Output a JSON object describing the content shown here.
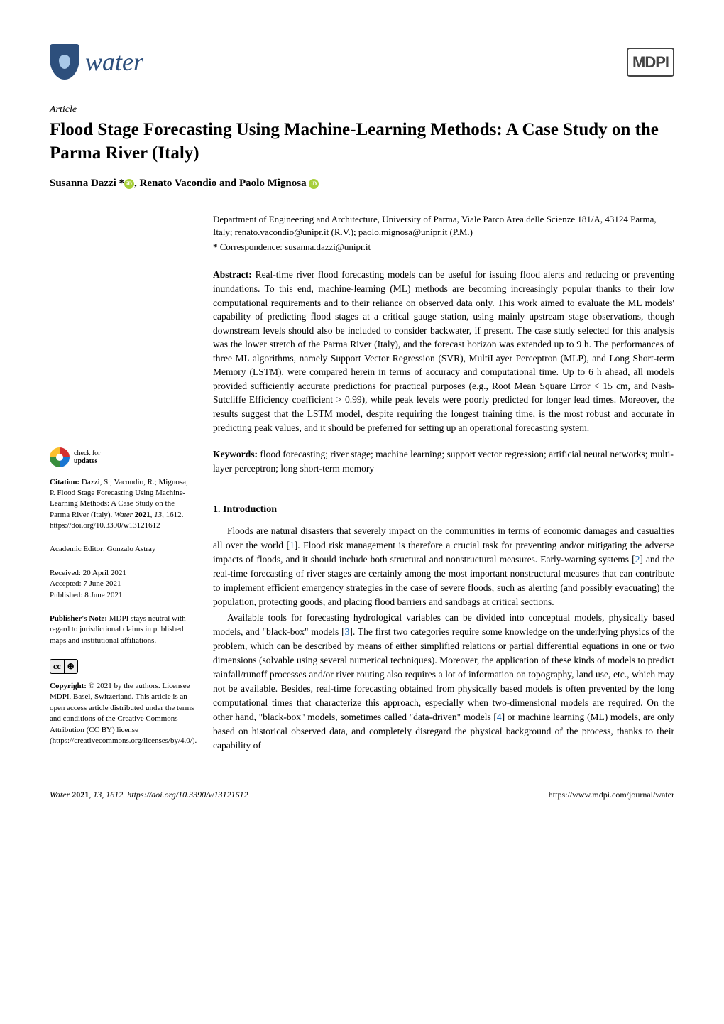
{
  "journal": {
    "name": "water",
    "publisher_logo": "MDPI"
  },
  "article": {
    "type": "Article",
    "title": "Flood Stage Forecasting Using Machine-Learning Methods: A Case Study on the Parma River (Italy)",
    "authors_line": "Susanna Dazzi *",
    "authors_line2": ", Renato Vacondio and Paolo Mignosa",
    "affiliation": "Department of Engineering and Architecture, University of Parma, Viale Parco Area delle Scienze 181/A, 43124 Parma, Italy; renato.vacondio@unipr.it (R.V.); paolo.mignosa@unipr.it (P.M.)",
    "correspondence_label": "*",
    "correspondence": "Correspondence: susanna.dazzi@unipr.it"
  },
  "abstract": {
    "label": "Abstract:",
    "text": "Real-time river flood forecasting models can be useful for issuing flood alerts and reducing or preventing inundations. To this end, machine-learning (ML) methods are becoming increasingly popular thanks to their low computational requirements and to their reliance on observed data only. This work aimed to evaluate the ML models' capability of predicting flood stages at a critical gauge station, using mainly upstream stage observations, though downstream levels should also be included to consider backwater, if present. The case study selected for this analysis was the lower stretch of the Parma River (Italy), and the forecast horizon was extended up to 9 h. The performances of three ML algorithms, namely Support Vector Regression (SVR), MultiLayer Perceptron (MLP), and Long Short-term Memory (LSTM), were compared herein in terms of accuracy and computational time. Up to 6 h ahead, all models provided sufficiently accurate predictions for practical purposes (e.g., Root Mean Square Error < 15 cm, and Nash-Sutcliffe Efficiency coefficient > 0.99), while peak levels were poorly predicted for longer lead times. Moreover, the results suggest that the LSTM model, despite requiring the longest training time, is the most robust and accurate in predicting peak values, and it should be preferred for setting up an operational forecasting system."
  },
  "keywords": {
    "label": "Keywords:",
    "text": "flood forecasting; river stage; machine learning; support vector regression; artificial neural networks; multi-layer perceptron; long short-term memory"
  },
  "sections": {
    "intro_heading": "1. Introduction",
    "intro_p1_a": "Floods are natural disasters that severely impact on the communities in terms of economic damages and casualties all over the world [",
    "intro_p1_ref1": "1",
    "intro_p1_b": "]. Flood risk management is therefore a crucial task for preventing and/or mitigating the adverse impacts of floods, and it should include both structural and nonstructural measures. Early-warning systems [",
    "intro_p1_ref2": "2",
    "intro_p1_c": "] and the real-time forecasting of river stages are certainly among the most important nonstructural measures that can contribute to implement efficient emergency strategies in the case of severe floods, such as alerting (and possibly evacuating) the population, protecting goods, and placing flood barriers and sandbags at critical sections.",
    "intro_p2_a": "Available tools for forecasting hydrological variables can be divided into conceptual models, physically based models, and \"black-box\" models [",
    "intro_p2_ref3": "3",
    "intro_p2_b": "]. The first two categories require some knowledge on the underlying physics of the problem, which can be described by means of either simplified relations or partial differential equations in one or two dimensions (solvable using several numerical techniques). Moreover, the application of these kinds of models to predict rainfall/runoff processes and/or river routing also requires a lot of information on topography, land use, etc., which may not be available. Besides, real-time forecasting obtained from physically based models is often prevented by the long computational times that characterize this approach, especially when two-dimensional models are required. On the other hand, \"black-box\" models, sometimes called \"data-driven\" models [",
    "intro_p2_ref4": "4",
    "intro_p2_c": "] or machine learning (ML) models, are only based on historical observed data, and completely disregard the physical background of the process, thanks to their capability of"
  },
  "sidebar": {
    "check_updates_line1": "check for",
    "check_updates_line2": "updates",
    "citation_label": "Citation:",
    "citation_text": "Dazzi, S.; Vacondio, R.; Mignosa, P. Flood Stage Forecasting Using Machine-Learning Methods: A Case Study on the Parma River (Italy). ",
    "citation_journal": "Water ",
    "citation_year": "2021",
    "citation_vol": ", 13",
    "citation_page": ", 1612. https://doi.org/10.3390/w13121612",
    "editor_label": "Academic Editor: ",
    "editor_name": "Gonzalo Astray",
    "received": "Received: 20 April 2021",
    "accepted": "Accepted: 7 June 2021",
    "published": "Published: 8 June 2021",
    "publisher_note_label": "Publisher's Note:",
    "publisher_note": " MDPI stays neutral with regard to jurisdictional claims in published maps and institutional affiliations.",
    "copyright_label": "Copyright:",
    "copyright_text": " © 2021 by the authors. Licensee MDPI, Basel, Switzerland. This article is an open access article distributed under the terms and conditions of the Creative Commons Attribution (CC BY) license (https://creativecommons.org/licenses/by/4.0/).",
    "cc_left": "cc",
    "cc_right": "⊕"
  },
  "footer": {
    "left_italic": "Water ",
    "left_year": "2021",
    "left_rest": ", 13, 1612. https://doi.org/10.3390/w13121612",
    "right": "https://www.mdpi.com/journal/water"
  },
  "colors": {
    "journal_blue": "#2d4f7c",
    "link_blue": "#1a6bb8",
    "orcid_green": "#a6ce39",
    "background": "#ffffff",
    "text": "#000000"
  },
  "typography": {
    "body_font": "Palatino Linotype, serif",
    "title_size_pt": 25,
    "body_size_pt": 13.5,
    "sidebar_size_pt": 11
  }
}
